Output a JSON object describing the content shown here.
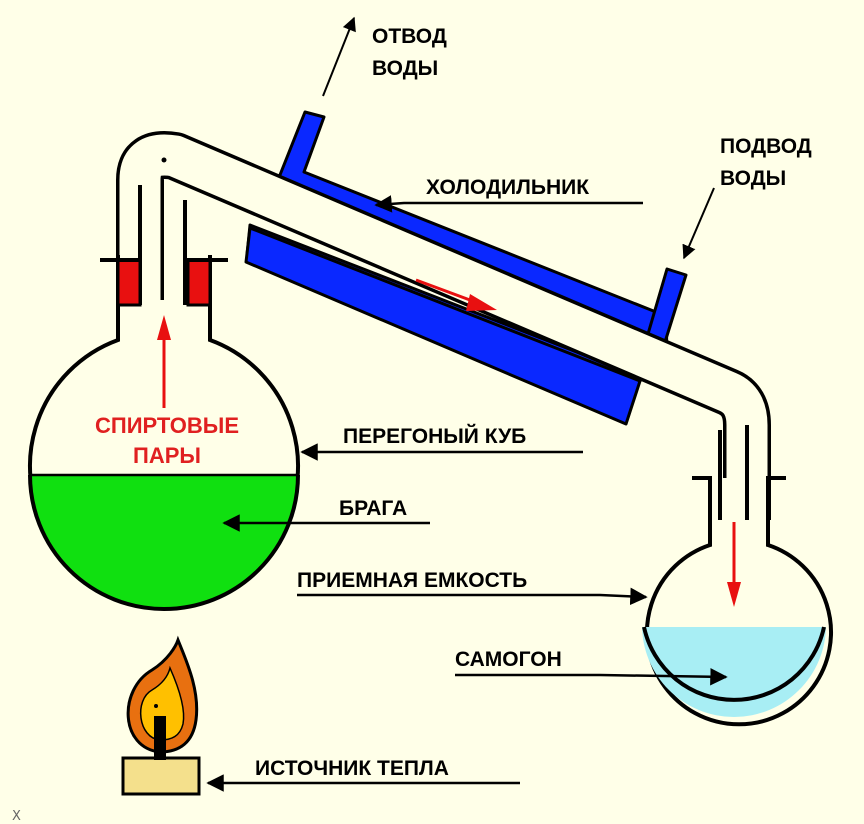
{
  "labels": {
    "water_outlet_line1": "ОТВОД",
    "water_outlet_line2": "ВОДЫ",
    "water_inlet_line1": "ПОДВОД",
    "water_inlet_line2": "ВОДЫ",
    "condenser": "ХОЛОДИЛЬНИК",
    "vapors_line1": "СПИРТОВЫЕ",
    "vapors_line2": "ПАРЫ",
    "still_pot": "ПЕРЕГОНЫЙ КУБ",
    "mash": "БРАГА",
    "receiver": "ПРИЕМНАЯ ЕМКОСТЬ",
    "product": "САМОГОН",
    "heat_source": "ИСТОЧНИК ТЕПЛА",
    "corner_mark": "X"
  },
  "colors": {
    "background": "#ffffe8",
    "condenser_jacket": "#0a28ff",
    "stopper": "#e81010",
    "mash_liquid": "#10e010",
    "product_liquid": "#a8eef4",
    "flow_arrow": "#e81010",
    "flame_outer": "#e87010",
    "flame_inner": "#ffc000",
    "burner_base": "#f4e08c",
    "vapor_text": "#e02020"
  }
}
